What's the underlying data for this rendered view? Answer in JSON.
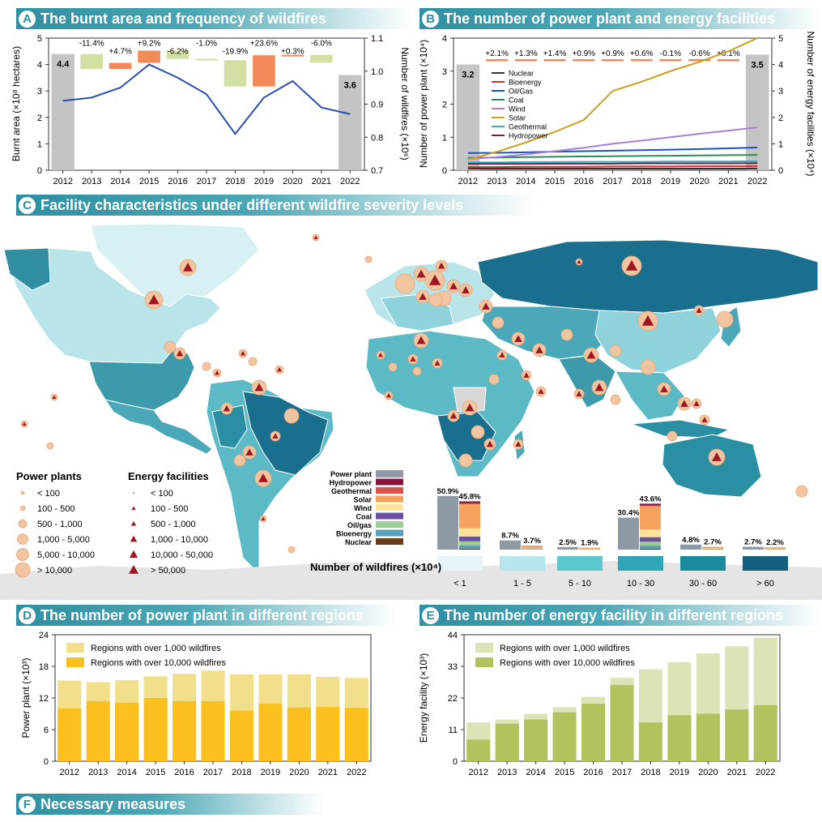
{
  "panels": {
    "a": {
      "letter": "A",
      "title": "The burnt area and frequency of wildfires"
    },
    "b": {
      "letter": "B",
      "title": "The number of power plant and energy facilities"
    },
    "c": {
      "letter": "C",
      "title": "Facility characteristics under different wildfire severity levels"
    },
    "d": {
      "letter": "D",
      "title": "The number of power plant in different regions"
    },
    "e": {
      "letter": "E",
      "title": "The number of energy facility in different regions"
    },
    "f": {
      "letter": "F",
      "title": "Necessary measures"
    }
  },
  "colors": {
    "panel_head": "#3a9aa9",
    "gray_bar": "#c4c4c4",
    "increase": "#f4895a",
    "decrease": "#d2e0a4",
    "line_blue": "#2a4fb0",
    "d_light": "#f2df8c",
    "d_dark": "#fbc01e",
    "e_light": "#dde3b6",
    "e_dark": "#b3c25c",
    "ocean": "#ffffff",
    "land_light": "#cdeef2",
    "land_dark": "#1a6f8e",
    "marker_fill": "#f3c4a0",
    "marker_triangle": "#a0161e"
  },
  "chart_data": [
    {
      "panel": "A",
      "type": "bar",
      "categories": [
        "2012",
        "2013",
        "2014",
        "2015",
        "2016",
        "2017",
        "2018",
        "2019",
        "2020",
        "2021",
        "2022"
      ],
      "endpoint_bars": [
        {
          "category": "2012",
          "value": 4.4,
          "label": "4.4"
        },
        {
          "category": "2022",
          "value": 3.6,
          "label": "3.6"
        }
      ],
      "change_labels": [
        "-11.4%",
        "+4.7%",
        "+9.2%",
        "-6.2%",
        "-1.0%",
        "-19.9%",
        "+23.6%",
        "+0.3%",
        "-6.0%"
      ],
      "change_values": [
        -11.4,
        4.7,
        9.2,
        -6.2,
        -1.0,
        -19.9,
        23.6,
        0.3,
        -6.0
      ],
      "series": [
        {
          "values": [
            0.91,
            0.92,
            0.95,
            1.02,
            0.98,
            0.93,
            0.81,
            0.92,
            0.97,
            0.89,
            0.87
          ]
        }
      ],
      "ylabel": "Burnt area (×10⁸ hectares)",
      "ylim": [
        0,
        5
      ],
      "yticks": [
        "0",
        "1",
        "2",
        "3",
        "4",
        "5"
      ],
      "y2label": "Number of wildfires (×10⁶)",
      "y2lim": [
        0.7,
        1.1
      ],
      "y2ticks": [
        "0.7",
        "0.8",
        "0.9",
        "1.0",
        "1.1"
      ]
    },
    {
      "panel": "B",
      "type": "line",
      "categories": [
        "2012",
        "2013",
        "2014",
        "2015",
        "2016",
        "2017",
        "2018",
        "2019",
        "2020",
        "2021",
        "2022"
      ],
      "endpoint_bars": [
        {
          "category": "2012",
          "value": 3.2,
          "label": "3.2"
        },
        {
          "category": "2022",
          "value": 3.5,
          "label": "3.5"
        }
      ],
      "change_labels": [
        "+2.1%",
        "+1.3%",
        "+1.4%",
        "+0.9%",
        "+0.9%",
        "+0.6%",
        "-0.1%",
        "-0.6%",
        "+0.1%"
      ],
      "legend": [
        "Nuclear",
        "Bioenergy",
        "Oil/Gas",
        "Coal",
        "Wind",
        "Solar",
        "Geothermal",
        "Hydropower"
      ],
      "series": [
        {
          "name": "Nuclear",
          "color": "#333333",
          "values": [
            0.06,
            0.06,
            0.06,
            0.06,
            0.06,
            0.06,
            0.06,
            0.06,
            0.06,
            0.06,
            0.06
          ]
        },
        {
          "name": "Bioenergy",
          "color": "#cc3333",
          "values": [
            0.12,
            0.12,
            0.13,
            0.13,
            0.13,
            0.14,
            0.14,
            0.14,
            0.15,
            0.15,
            0.15
          ]
        },
        {
          "name": "Oil/Gas",
          "color": "#1f4fc8",
          "values": [
            0.65,
            0.66,
            0.68,
            0.7,
            0.72,
            0.74,
            0.76,
            0.78,
            0.8,
            0.83,
            0.86
          ]
        },
        {
          "name": "Coal",
          "color": "#2e8b57",
          "values": [
            0.47,
            0.48,
            0.5,
            0.51,
            0.52,
            0.53,
            0.54,
            0.55,
            0.56,
            0.57,
            0.58
          ]
        },
        {
          "name": "Wind",
          "color": "#a97fd6",
          "values": [
            0.42,
            0.5,
            0.6,
            0.72,
            0.85,
            1.0,
            1.12,
            1.25,
            1.38,
            1.5,
            1.62
          ]
        },
        {
          "name": "Solar",
          "color": "#c8a023",
          "values": [
            0.4,
            0.7,
            1.05,
            1.45,
            1.9,
            3.0,
            3.35,
            3.75,
            4.1,
            4.5,
            5.0
          ]
        },
        {
          "name": "Geothermal",
          "color": "#2ab3c2",
          "values": [
            0.3,
            0.3,
            0.31,
            0.31,
            0.32,
            0.32,
            0.32,
            0.33,
            0.33,
            0.33,
            0.34
          ]
        },
        {
          "name": "Hydropower",
          "color": "#7a1f3d",
          "values": [
            0.24,
            0.24,
            0.24,
            0.25,
            0.25,
            0.25,
            0.26,
            0.26,
            0.26,
            0.26,
            0.27
          ]
        }
      ],
      "ylabel": "Number of power plant (×10⁴)",
      "ylim": [
        0,
        4
      ],
      "yticks": [
        "0",
        "1",
        "2",
        "3",
        "4"
      ],
      "y2label": "Number of energy facilities (×10⁴)",
      "y2lim": [
        0,
        5
      ],
      "y2ticks": [
        "0",
        "1",
        "2",
        "3",
        "4",
        "5"
      ]
    },
    {
      "panel": "C",
      "type": "bar",
      "legend_title": "Number of wildfires (×10⁴)",
      "categories": [
        "< 1",
        "1 - 5",
        "5 - 10",
        "10 - 30",
        "30 - 60",
        "> 60"
      ],
      "power_plant_share_labels": [
        "50.9%",
        "8.7%",
        "2.5%",
        "30.4%",
        "4.8%",
        "2.7%"
      ],
      "power_plant_share": [
        50.9,
        8.7,
        2.5,
        30.4,
        4.8,
        2.7
      ],
      "energy_facility_share_labels": [
        "45.8%",
        "3.7%",
        "1.9%",
        "43.6%",
        "2.7%",
        "2.2%"
      ],
      "energy_facility_share": [
        45.8,
        3.7,
        1.9,
        43.6,
        2.7,
        2.2
      ],
      "stack_legend": [
        "Power plant",
        "Hydropower",
        "Geothermal",
        "Solar",
        "Wind",
        "Coal",
        "Oil/gas",
        "Bioenergy",
        "Nuclear"
      ],
      "stack_colors": [
        "#8d9aa5",
        "#8a1538",
        "#d9534f",
        "#f5a35c",
        "#fbe39a",
        "#6b4fa0",
        "#9ccf9a",
        "#5aa0b8",
        "#6b3a16"
      ],
      "bin_colors": [
        "#e6f6f8",
        "#b6e6ec",
        "#5cc7cf",
        "#2ea6b8",
        "#1a8a9c",
        "#14607e"
      ],
      "power_plant_legend_title": "Power plants",
      "power_plant_bins": [
        "< 100",
        "100 - 500",
        "500 - 1,000",
        "1,000 - 5,000",
        "5,000 - 10,000",
        "> 10,000"
      ],
      "energy_facility_legend_title": "Energy facilities",
      "energy_facility_bins": [
        "< 100",
        "100 - 500",
        "500 - 1,000",
        "1,000 - 10,000",
        "10,000 - 50,000",
        "> 50,000"
      ]
    },
    {
      "panel": "D",
      "type": "bar",
      "categories": [
        "2012",
        "2013",
        "2014",
        "2015",
        "2016",
        "2017",
        "2018",
        "2019",
        "2020",
        "2021",
        "2022"
      ],
      "series": [
        {
          "name": "Regions with over 1,000 wildfires",
          "values": [
            15.3,
            15.0,
            15.4,
            16.1,
            16.6,
            17.2,
            16.5,
            16.5,
            16.5,
            16.0,
            15.8
          ]
        },
        {
          "name": "Regions with over 10,000 wildfires",
          "values": [
            10.0,
            11.4,
            11.1,
            12.0,
            11.4,
            11.4,
            9.6,
            10.9,
            10.2,
            10.3,
            10.1
          ]
        }
      ],
      "ylabel": "Power plant (×10³)",
      "ylim": [
        0,
        24
      ],
      "yticks": [
        "0",
        "6",
        "12",
        "18",
        "24"
      ]
    },
    {
      "panel": "E",
      "type": "bar",
      "categories": [
        "2012",
        "2013",
        "2014",
        "2015",
        "2016",
        "2017",
        "2018",
        "2019",
        "2020",
        "2021",
        "2022"
      ],
      "series": [
        {
          "name": "Regions with over 1,000 wildfires",
          "values": [
            13.5,
            14.5,
            16.5,
            18.8,
            22.4,
            29.0,
            32.0,
            34.5,
            37.5,
            40.0,
            43.0
          ]
        },
        {
          "name": "Regions with over 10,000 wildfires",
          "values": [
            7.5,
            13.0,
            14.5,
            17.0,
            20.0,
            26.5,
            13.5,
            16.0,
            16.5,
            18.0,
            19.5
          ]
        }
      ],
      "ylabel": "Energy facility (×10³)",
      "ylim": [
        0,
        44
      ],
      "yticks": [
        "0",
        "11",
        "22",
        "33",
        "44"
      ]
    }
  ]
}
